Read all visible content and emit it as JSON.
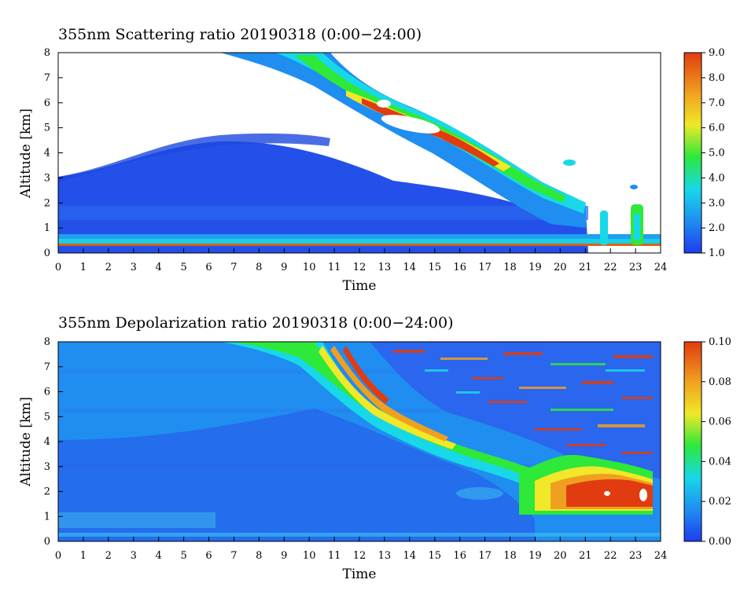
{
  "charts": [
    {
      "title": "355nm Scattering ratio  20190318 (0:00−24:00)",
      "xlabel": "Time",
      "ylabel": "Altitude [km]",
      "x_ticks": [
        "0",
        "1",
        "2",
        "3",
        "4",
        "5",
        "6",
        "7",
        "8",
        "9",
        "10",
        "11",
        "12",
        "13",
        "14",
        "15",
        "16",
        "17",
        "18",
        "19",
        "20",
        "21",
        "22",
        "23",
        "24"
      ],
      "y_ticks": [
        "0",
        "1",
        "2",
        "3",
        "4",
        "5",
        "6",
        "7",
        "8"
      ],
      "colorbar_ticks": [
        "1.0",
        "2.0",
        "3.0",
        "4.0",
        "5.0",
        "6.0",
        "7.0",
        "8.0",
        "9.0"
      ]
    },
    {
      "title": "355nm Depolarization ratio  20190318 (0:00−24:00)",
      "xlabel": "Time",
      "ylabel": "Altitude [km]",
      "x_ticks": [
        "0",
        "1",
        "2",
        "3",
        "4",
        "5",
        "6",
        "7",
        "8",
        "9",
        "10",
        "11",
        "12",
        "13",
        "14",
        "15",
        "16",
        "17",
        "18",
        "19",
        "20",
        "21",
        "22",
        "23",
        "24"
      ],
      "y_ticks": [
        "0",
        "1",
        "2",
        "3",
        "4",
        "5",
        "6",
        "7",
        "8"
      ],
      "colorbar_ticks": [
        "0.00",
        "0.02",
        "0.04",
        "0.06",
        "0.08",
        "0.10"
      ]
    }
  ],
  "chart_data": [
    {
      "type": "heatmap",
      "title": "355nm Scattering ratio  20190318 (0:00−24:00)",
      "xlabel": "Time",
      "ylabel": "Altitude [km]",
      "xlim": [
        0,
        24
      ],
      "ylim": [
        0,
        8
      ],
      "colorbar": {
        "min": 1.0,
        "max": 9.0,
        "ticks": [
          1.0,
          2.0,
          3.0,
          4.0,
          5.0,
          6.0,
          7.0,
          8.0,
          9.0
        ]
      },
      "colormap": [
        "#1f3cf0",
        "#1f8ef0",
        "#18d8e8",
        "#2ee83a",
        "#f0e828",
        "#f0a020",
        "#e03c10"
      ],
      "features": [
        {
          "name": "boundary layer",
          "time_range": [
            0,
            21
          ],
          "altitude_top_km": [
            3.0,
            3.6,
            3.0,
            2.2,
            1.2
          ],
          "value": 1.6
        },
        {
          "name": "near-surface layer",
          "time_range": [
            0,
            24
          ],
          "altitude_km": [
            0.2,
            0.5
          ],
          "value": 3.0
        },
        {
          "name": "descending cloud",
          "time_range": [
            6.5,
            21
          ],
          "altitude_top_km": [
            8,
            1.2
          ],
          "value": 7.0
        },
        {
          "name": "isolated cloud",
          "time_range": [
            21.6,
            21.9
          ],
          "altitude_km": [
            0.2,
            1.7
          ],
          "value": 3.0
        },
        {
          "name": "isolated cloud",
          "time_range": [
            22.9,
            23.4
          ],
          "altitude_km": [
            0.2,
            1.9
          ],
          "value": 3.5
        }
      ]
    },
    {
      "type": "heatmap",
      "title": "355nm Depolarization ratio  20190318 (0:00−24:00)",
      "xlabel": "Time",
      "ylabel": "Altitude [km]",
      "xlim": [
        0,
        24
      ],
      "ylim": [
        0,
        8
      ],
      "colorbar": {
        "min": 0.0,
        "max": 0.1,
        "ticks": [
          0.0,
          0.02,
          0.04,
          0.06,
          0.08,
          0.1
        ]
      },
      "colormap": [
        "#1f3cf0",
        "#1f8ef0",
        "#18d8e8",
        "#2ee83a",
        "#f0e828",
        "#f0a020",
        "#e03c10"
      ],
      "features": [
        {
          "name": "background",
          "time_range": [
            0,
            24
          ],
          "altitude_km": [
            0,
            8
          ],
          "value": 0.012
        },
        {
          "name": "descending cloud",
          "time_range": [
            6.5,
            21
          ],
          "altitude_top_km": [
            8,
            2.5
          ],
          "value": 0.08
        },
        {
          "name": "noisy upper region",
          "time_range": [
            13,
            24
          ],
          "altitude_km": [
            4.5,
            8
          ],
          "value": 0.05
        },
        {
          "name": "high-depol cloud",
          "time_range": [
            20.5,
            23.8
          ],
          "altitude_km": [
            1.2,
            2.8
          ],
          "value": 0.09
        }
      ]
    }
  ]
}
